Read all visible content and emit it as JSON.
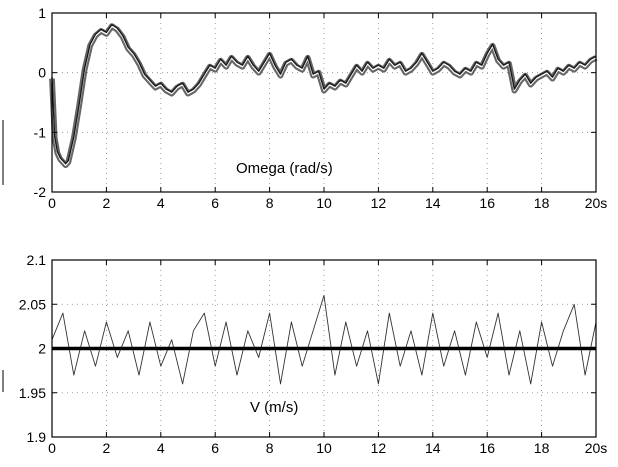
{
  "chart_data": [
    {
      "type": "line",
      "xlabel": "",
      "ylabel": "",
      "annotation": "Omega (rad/s)",
      "xlim": [
        0,
        20
      ],
      "ylim": [
        -2,
        1
      ],
      "xticks": [
        0,
        2,
        4,
        6,
        8,
        10,
        12,
        14,
        16,
        18,
        20
      ],
      "xtick_labels": [
        "0",
        "2",
        "4",
        "6",
        "8",
        "10",
        "12",
        "14",
        "16",
        "18",
        "20s"
      ],
      "yticks": [
        -2,
        -1,
        0,
        1
      ],
      "ytick_labels": [
        "-2",
        "-1",
        "0",
        "1"
      ],
      "grid": true,
      "series": [
        {
          "x": [
            0,
            0.1,
            0.2,
            0.3,
            0.4,
            0.5,
            0.6,
            0.8,
            1.0,
            1.2,
            1.4,
            1.6,
            1.8,
            2.0,
            2.2,
            2.4,
            2.6,
            2.8,
            3.0,
            3.2,
            3.4,
            3.6,
            3.8,
            4.0,
            4.2,
            4.4,
            4.6,
            4.8,
            5.0,
            5.2,
            5.4,
            5.6,
            5.8,
            6.0,
            6.2,
            6.4,
            6.6,
            6.8,
            7.0,
            7.2,
            7.4,
            7.6,
            7.8,
            8.0,
            8.2,
            8.4,
            8.6,
            8.8,
            9.0,
            9.2,
            9.4,
            9.6,
            9.8,
            10.0,
            10.2,
            10.4,
            10.6,
            10.8,
            11.0,
            11.2,
            11.4,
            11.6,
            11.8,
            12.0,
            12.2,
            12.4,
            12.6,
            12.8,
            13.0,
            13.2,
            13.4,
            13.6,
            13.8,
            14.0,
            14.2,
            14.4,
            14.6,
            14.8,
            15.0,
            15.2,
            15.4,
            15.6,
            15.8,
            16.0,
            16.2,
            16.4,
            16.6,
            16.8,
            17.0,
            17.2,
            17.4,
            17.6,
            17.8,
            18.0,
            18.2,
            18.4,
            18.6,
            18.8,
            19.0,
            19.2,
            19.4,
            19.6,
            19.8,
            20.0
          ],
          "values": [
            -0.1,
            -1.1,
            -1.35,
            -1.45,
            -1.5,
            -1.55,
            -1.5,
            -1.1,
            -0.55,
            0.05,
            0.45,
            0.62,
            0.7,
            0.65,
            0.78,
            0.72,
            0.6,
            0.4,
            0.3,
            0.15,
            -0.05,
            -0.15,
            -0.25,
            -0.2,
            -0.3,
            -0.35,
            -0.25,
            -0.2,
            -0.35,
            -0.3,
            -0.2,
            -0.05,
            0.1,
            0.05,
            0.2,
            0.1,
            0.25,
            0.15,
            0.1,
            0.25,
            0.1,
            0.0,
            0.15,
            0.3,
            0.1,
            -0.05,
            0.15,
            0.2,
            0.1,
            0.05,
            0.25,
            -0.05,
            0.0,
            -0.3,
            -0.2,
            -0.25,
            -0.15,
            -0.2,
            -0.05,
            0.1,
            0.0,
            0.15,
            0.05,
            0.1,
            0.05,
            0.2,
            0.1,
            0.15,
            0.0,
            0.05,
            0.15,
            0.3,
            0.15,
            0.0,
            0.05,
            0.15,
            0.1,
            0.0,
            -0.05,
            0.05,
            0.0,
            0.15,
            0.1,
            0.3,
            0.45,
            0.2,
            0.1,
            0.15,
            -0.3,
            -0.15,
            -0.05,
            -0.2,
            -0.1,
            -0.05,
            0.0,
            -0.1,
            0.05,
            0.0,
            0.1,
            0.05,
            0.15,
            0.1,
            0.2,
            0.25
          ]
        }
      ]
    },
    {
      "type": "line",
      "xlabel": "",
      "ylabel": "",
      "annotation": "V (m/s)",
      "xlim": [
        0,
        20
      ],
      "ylim": [
        1.9,
        2.1
      ],
      "xticks": [
        0,
        2,
        4,
        6,
        8,
        10,
        12,
        14,
        16,
        18,
        20
      ],
      "xtick_labels": [
        "0",
        "2",
        "4",
        "6",
        "8",
        "10",
        "12",
        "14",
        "16",
        "18",
        "20s"
      ],
      "yticks": [
        1.9,
        1.95,
        2,
        2.05,
        2.1
      ],
      "ytick_labels": [
        "1.9",
        "1.95",
        "2",
        "2.05",
        "2.1"
      ],
      "grid": true,
      "series": [
        {
          "x": [
            0,
            0.4,
            0.8,
            1.2,
            1.6,
            2.0,
            2.4,
            2.8,
            3.2,
            3.6,
            4.0,
            4.4,
            4.8,
            5.2,
            5.6,
            6.0,
            6.4,
            6.8,
            7.2,
            7.6,
            8.0,
            8.4,
            8.8,
            9.2,
            9.6,
            10.0,
            10.4,
            10.8,
            11.2,
            11.6,
            12.0,
            12.4,
            12.8,
            13.2,
            13.6,
            14.0,
            14.4,
            14.8,
            15.2,
            15.6,
            16.0,
            16.4,
            16.8,
            17.2,
            17.6,
            18.0,
            18.4,
            18.8,
            19.2,
            19.6,
            20.0
          ],
          "values": [
            2.01,
            2.04,
            1.97,
            2.02,
            1.98,
            2.03,
            1.99,
            2.02,
            1.97,
            2.03,
            1.98,
            2.01,
            1.96,
            2.02,
            2.04,
            1.98,
            2.03,
            1.97,
            2.02,
            1.99,
            2.04,
            1.96,
            2.03,
            1.98,
            2.02,
            2.06,
            1.97,
            2.03,
            1.98,
            2.02,
            1.96,
            2.04,
            1.98,
            2.02,
            1.97,
            2.04,
            1.98,
            2.02,
            1.97,
            2.03,
            1.99,
            2.04,
            1.97,
            2.02,
            1.96,
            2.03,
            1.98,
            2.02,
            2.05,
            1.97,
            2.03
          ]
        },
        {
          "x": [
            0,
            20
          ],
          "values": [
            2.0,
            2.0
          ]
        }
      ]
    }
  ]
}
